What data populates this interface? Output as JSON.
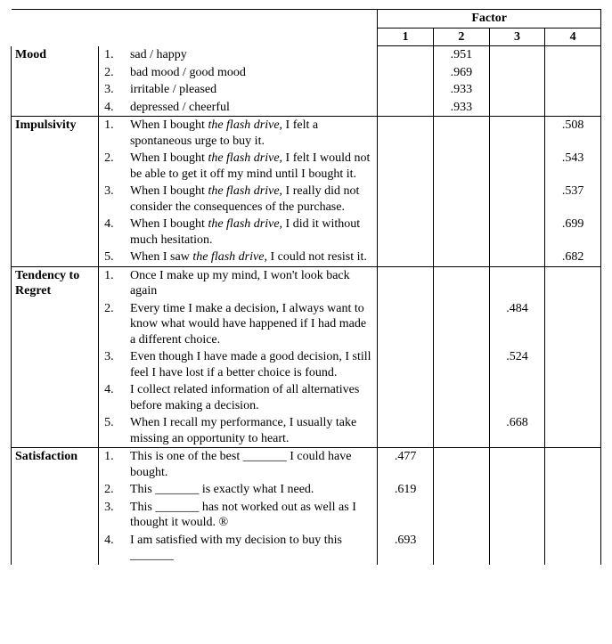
{
  "header": {
    "factor_label": "Factor",
    "cols": [
      "1",
      "2",
      "3",
      "4"
    ]
  },
  "sections": [
    {
      "name": "Mood",
      "rows": [
        {
          "n": "1.",
          "text": "sad / happy",
          "vals": [
            "",
            ".951",
            "",
            ""
          ]
        },
        {
          "n": "2.",
          "text": "bad mood / good mood",
          "vals": [
            "",
            ".969",
            "",
            ""
          ]
        },
        {
          "n": "3.",
          "text": "irritable / pleased",
          "vals": [
            "",
            ".933",
            "",
            ""
          ]
        },
        {
          "n": "4.",
          "text": "depressed / cheerful",
          "vals": [
            "",
            ".933",
            "",
            ""
          ]
        }
      ]
    },
    {
      "name": "Impulsivity",
      "rows": [
        {
          "n": "1.",
          "textA": "When I bought ",
          "textI": "the flash drive",
          "textB": ", I felt a spontaneous urge to buy it.",
          "vals": [
            "",
            "",
            "",
            ".508"
          ]
        },
        {
          "n": "2.",
          "textA": "When I bought ",
          "textI": "the flash drive",
          "textB": ", I felt I would not be able to get it off my mind until I bought it.",
          "vals": [
            "",
            "",
            "",
            ".543"
          ]
        },
        {
          "n": "3.",
          "textA": "When I bought ",
          "textI": "the flash drive",
          "textB": ", I really did not consider the consequences of the purchase.",
          "vals": [
            "",
            "",
            "",
            ".537"
          ]
        },
        {
          "n": "4.",
          "textA": "When I bought ",
          "textI": "the flash drive",
          "textB": ", I did it without much hesitation.",
          "vals": [
            "",
            "",
            "",
            ".699"
          ]
        },
        {
          "n": "5.",
          "textA": "When I saw ",
          "textI": "the flash drive",
          "textB": ", I could not resist it.",
          "vals": [
            "",
            "",
            "",
            ".682"
          ]
        }
      ]
    },
    {
      "name": "Tendency to Regret",
      "rows": [
        {
          "n": "1.",
          "text": "Once I make up my mind, I won't look back again",
          "vals": [
            "",
            "",
            "",
            ""
          ]
        },
        {
          "n": "2.",
          "text": "Every time I make a decision, I always want to know what would have happened if I had made a different choice.",
          "vals": [
            "",
            "",
            ".484",
            ""
          ]
        },
        {
          "n": "3.",
          "text": "Even though I have made a good decision, I still feel I have lost if a better choice is found.",
          "vals": [
            "",
            "",
            ".524",
            ""
          ]
        },
        {
          "n": "4.",
          "text": "I collect related information of all alternatives before making a decision.",
          "vals": [
            "",
            "",
            "",
            ""
          ]
        },
        {
          "n": "5.",
          "text": "When I recall my performance, I usually take missing an opportunity to heart.",
          "vals": [
            "",
            "",
            ".668",
            ""
          ]
        }
      ]
    },
    {
      "name": "Satisfaction",
      "rows": [
        {
          "n": "1.",
          "text": "This is one of the best _______ I could have bought.",
          "vals": [
            ".477",
            "",
            "",
            ""
          ]
        },
        {
          "n": "2.",
          "text": "This _______ is exactly what I need.",
          "vals": [
            ".619",
            "",
            "",
            ""
          ]
        },
        {
          "n": "3.",
          "text": "This _______ has not worked out as well as I thought it would. ®",
          "vals": [
            "",
            "",
            "",
            ""
          ]
        },
        {
          "n": "4.",
          "text": "I am satisfied with my decision to buy this _______",
          "vals": [
            ".693",
            "",
            "",
            ""
          ]
        }
      ]
    }
  ]
}
